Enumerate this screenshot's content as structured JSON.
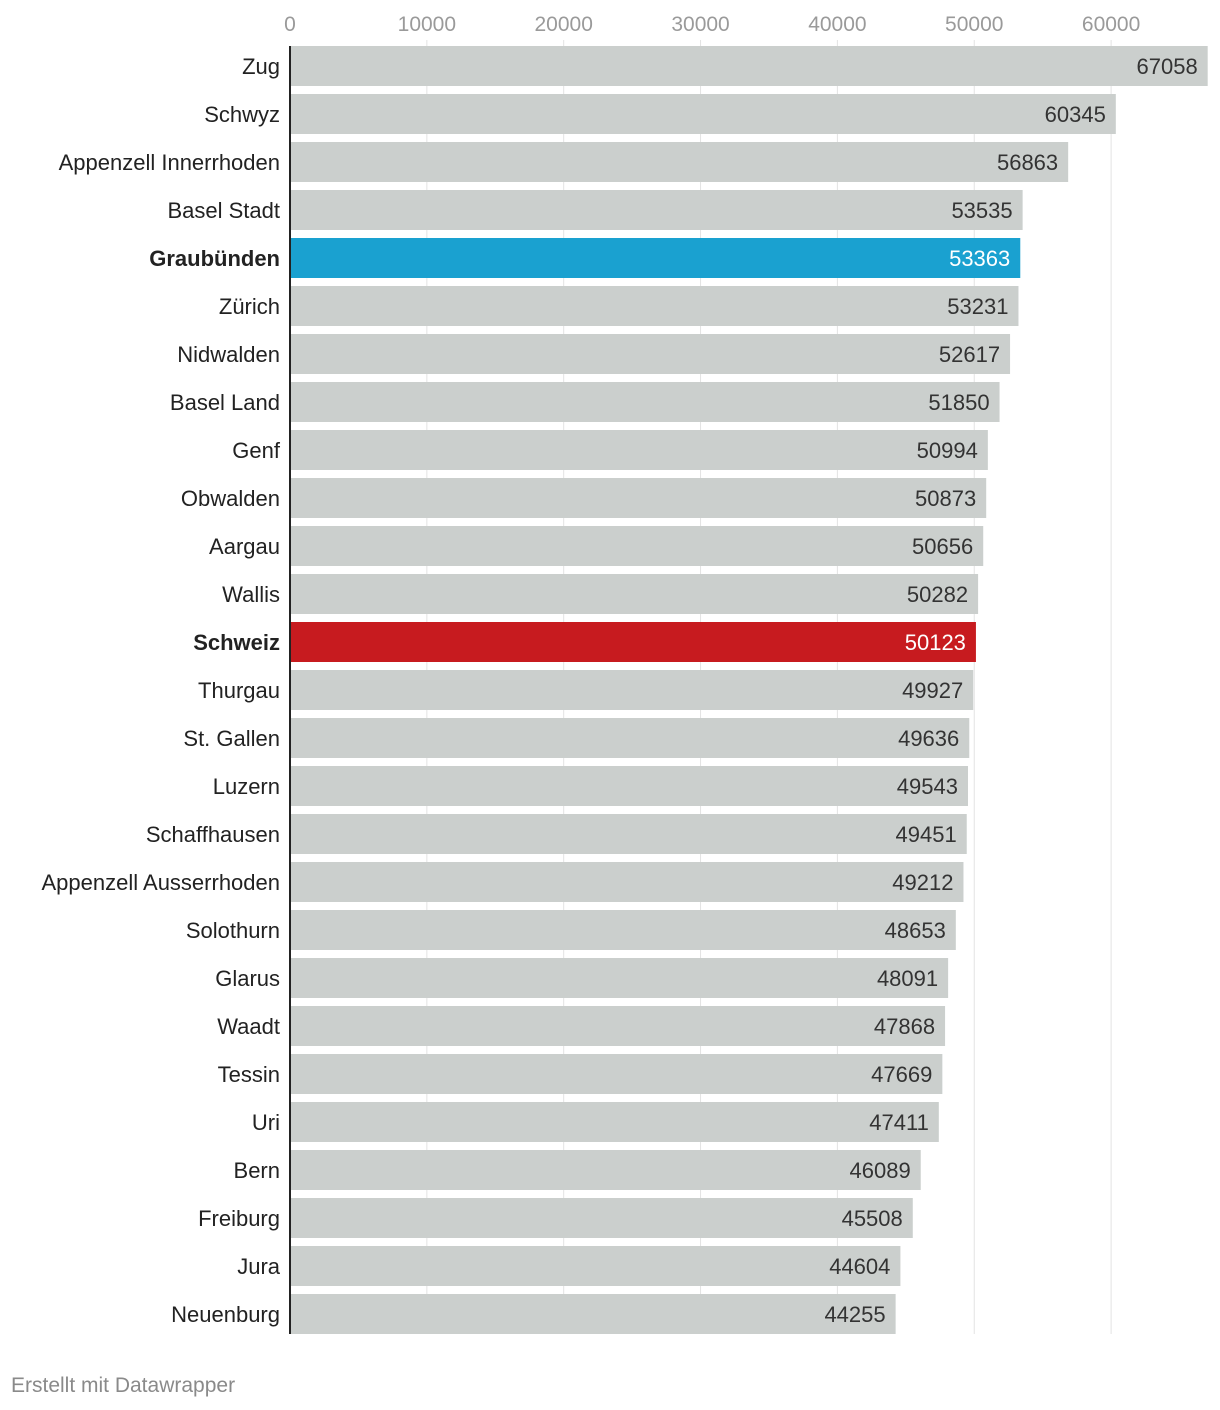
{
  "chart_data": {
    "type": "bar",
    "orientation": "horizontal",
    "xlim": [
      0,
      67058
    ],
    "xticks": [
      0,
      10000,
      20000,
      30000,
      40000,
      50000,
      60000
    ],
    "grid": true,
    "colors": {
      "default": "#cbcfcd",
      "highlight_graubuenden": "#1aa1d0",
      "highlight_schweiz": "#c71b1f",
      "axis": "#222222",
      "gridline": "#e3e3e3",
      "tick_label": "#9a9a9a",
      "value_label_dark": "#333333",
      "value_label_light": "#ffffff"
    },
    "categories": [
      "Zug",
      "Schwyz",
      "Appenzell Innerrhoden",
      "Basel Stadt",
      "Graubünden",
      "Zürich",
      "Nidwalden",
      "Basel Land",
      "Genf",
      "Obwalden",
      "Aargau",
      "Wallis",
      "Schweiz",
      "Thurgau",
      "St. Gallen",
      "Luzern",
      "Schaffhausen",
      "Appenzell Ausserrhoden",
      "Solothurn",
      "Glarus",
      "Waadt",
      "Tessin",
      "Uri",
      "Bern",
      "Freiburg",
      "Jura",
      "Neuenburg"
    ],
    "values": [
      67058,
      60345,
      56863,
      53535,
      53363,
      53231,
      52617,
      51850,
      50994,
      50873,
      50656,
      50282,
      50123,
      49927,
      49636,
      49543,
      49451,
      49212,
      48653,
      48091,
      47868,
      47669,
      47411,
      46089,
      45508,
      44604,
      44255
    ],
    "highlights": [
      {
        "category": "Graubünden",
        "color": "#1aa1d0",
        "bold": true
      },
      {
        "category": "Schweiz",
        "color": "#c71b1f",
        "bold": true
      }
    ]
  },
  "footer": {
    "credit": "Erstellt mit Datawrapper"
  }
}
